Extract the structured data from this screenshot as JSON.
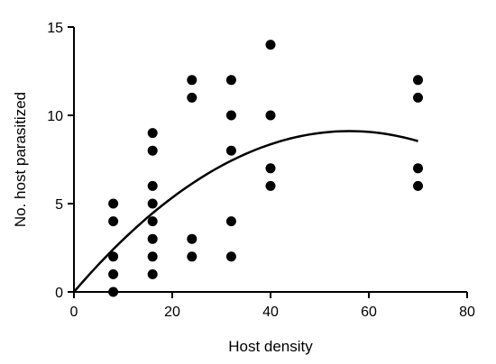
{
  "chart_data": {
    "type": "scatter",
    "xlabel": "Host density",
    "ylabel": "No. host parasitized",
    "xlim": [
      0,
      80
    ],
    "ylim": [
      0,
      15
    ],
    "xticks": [
      0,
      20,
      40,
      60,
      80
    ],
    "yticks": [
      0,
      5,
      10,
      15
    ],
    "grid": false,
    "point_color": "#000000",
    "points": [
      {
        "x": 8,
        "y": 0
      },
      {
        "x": 8,
        "y": 1
      },
      {
        "x": 8,
        "y": 2
      },
      {
        "x": 8,
        "y": 4
      },
      {
        "x": 8,
        "y": 5
      },
      {
        "x": 16,
        "y": 1
      },
      {
        "x": 16,
        "y": 2
      },
      {
        "x": 16,
        "y": 3
      },
      {
        "x": 16,
        "y": 4
      },
      {
        "x": 16,
        "y": 5
      },
      {
        "x": 16,
        "y": 6
      },
      {
        "x": 16,
        "y": 8
      },
      {
        "x": 16,
        "y": 9
      },
      {
        "x": 24,
        "y": 2
      },
      {
        "x": 24,
        "y": 3
      },
      {
        "x": 24,
        "y": 11
      },
      {
        "x": 24,
        "y": 12
      },
      {
        "x": 32,
        "y": 2
      },
      {
        "x": 32,
        "y": 4
      },
      {
        "x": 32,
        "y": 8
      },
      {
        "x": 32,
        "y": 10
      },
      {
        "x": 32,
        "y": 12
      },
      {
        "x": 40,
        "y": 6
      },
      {
        "x": 40,
        "y": 7
      },
      {
        "x": 40,
        "y": 10
      },
      {
        "x": 40,
        "y": 14
      },
      {
        "x": 70,
        "y": 6
      },
      {
        "x": 70,
        "y": 7
      },
      {
        "x": 70,
        "y": 11
      },
      {
        "x": 70,
        "y": 12
      }
    ],
    "fit_curve": {
      "type": "quadratic",
      "coefficients": {
        "a": -0.0029,
        "b": 0.325,
        "c": 0
      },
      "x_range": [
        0,
        70
      ]
    }
  }
}
